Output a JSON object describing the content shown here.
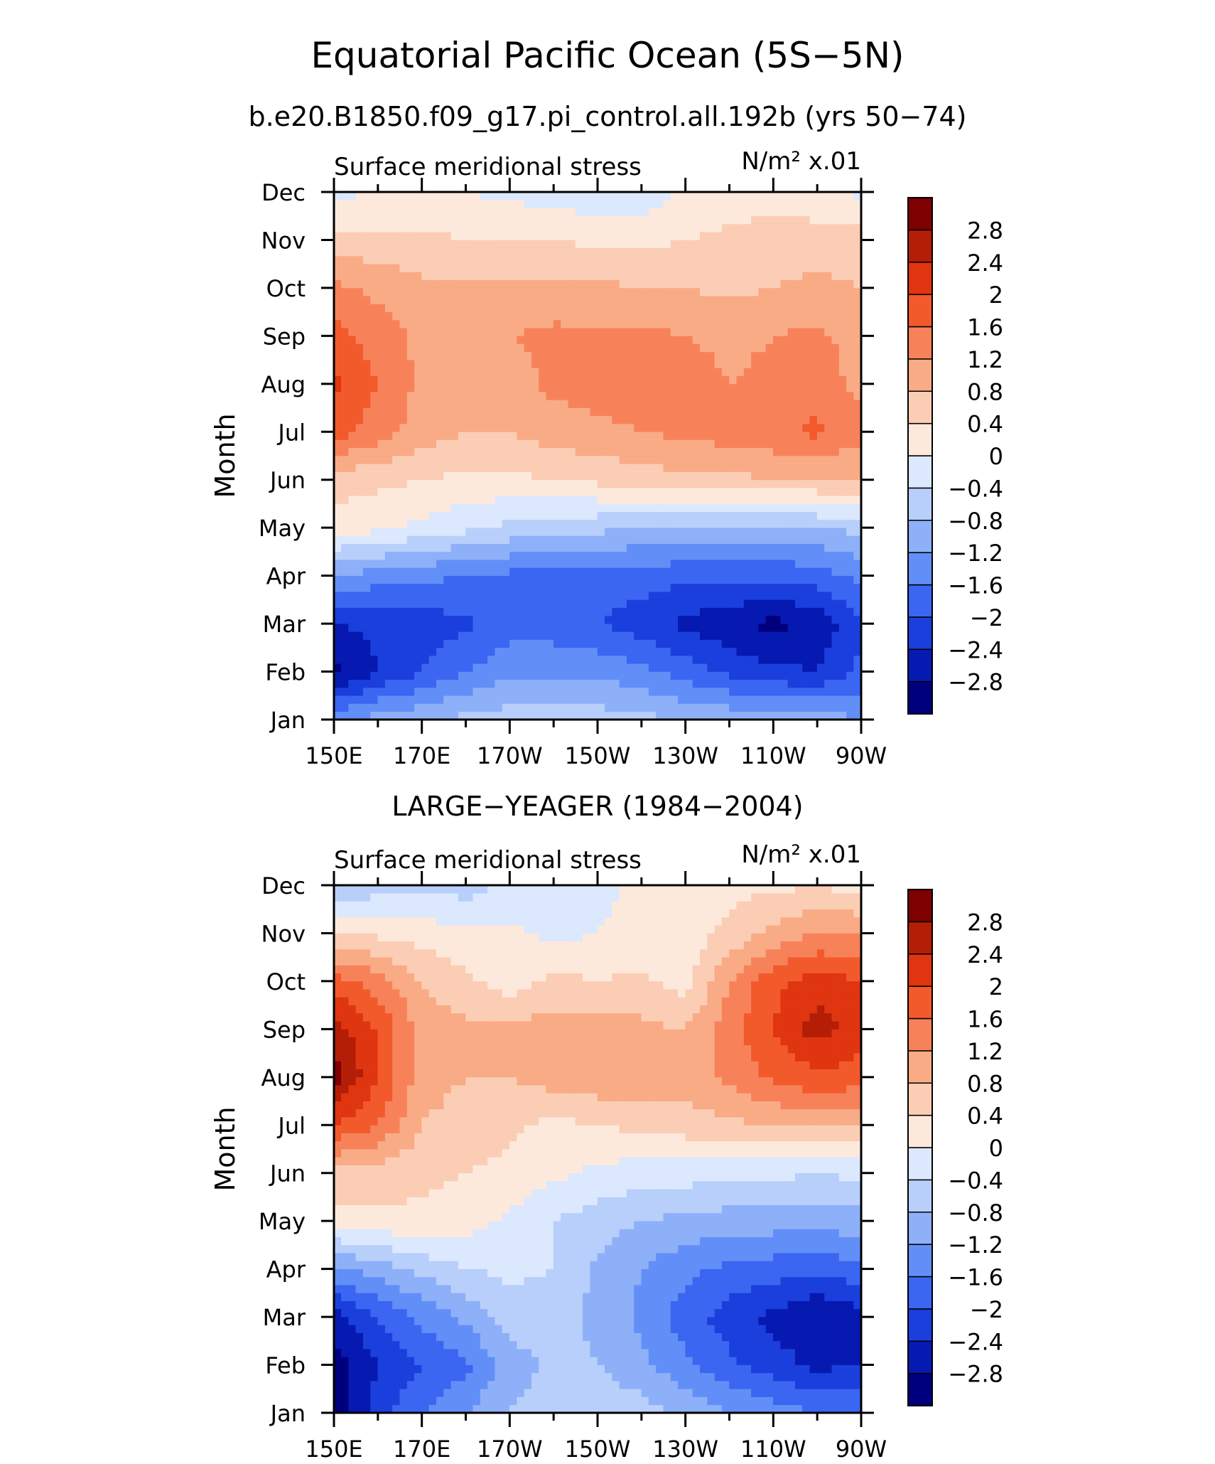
{
  "figure": {
    "title": "Equatorial Pacific Ocean (5S−5N)",
    "subtitle": "b.e20.B1850.f09_g17.pi_control.all.192b (yrs 50−74)"
  },
  "palette": [
    "#00007f",
    "#0619b0",
    "#1a3fdc",
    "#3a66f2",
    "#628ff7",
    "#8eb0f9",
    "#b8cffb",
    "#dbe8fd",
    "#fde9dc",
    "#fbcdb4",
    "#f9ab86",
    "#f7825a",
    "#f25a2c",
    "#df3510",
    "#b41e07",
    "#7f0000"
  ],
  "chart_data": [
    {
      "type": "heatmap",
      "panel_title": "",
      "left_label": "Surface meridional stress",
      "units_label": "N/m² x.01",
      "ylabel": "Month",
      "xlabel": "",
      "x": [
        "150E",
        "160E",
        "170E",
        "180",
        "170W",
        "160W",
        "150W",
        "140W",
        "130W",
        "120W",
        "110W",
        "100W",
        "90W"
      ],
      "x_ticklabels": [
        "150E",
        "170E",
        "170W",
        "150W",
        "130W",
        "110W",
        "90W"
      ],
      "y": [
        "Jan",
        "Feb",
        "Mar",
        "Apr",
        "May",
        "Jun",
        "Jul",
        "Aug",
        "Sep",
        "Oct",
        "Nov",
        "Dec"
      ],
      "levels": [
        -2.8,
        -2.4,
        -2.0,
        -1.6,
        -1.2,
        -0.8,
        -0.4,
        0,
        0.4,
        0.8,
        1.2,
        1.6,
        2.0,
        2.4,
        2.8
      ],
      "colorbar_labels": [
        "2.8",
        "2.4",
        "2",
        "1.6",
        "1.2",
        "0.8",
        "0.4",
        "0",
        "−0.4",
        "−0.8",
        "−1.2",
        "−1.6",
        "−2",
        "−2.4",
        "−2.8"
      ],
      "z": [
        [
          -1.4,
          -1.0,
          -0.9,
          -0.7,
          -0.6,
          -0.6,
          -0.6,
          -0.7,
          -0.8,
          -0.9,
          -1.0,
          -1.0,
          -1.2
        ],
        [
          -2.9,
          -2.4,
          -2.0,
          -1.6,
          -1.3,
          -1.3,
          -1.3,
          -1.5,
          -1.8,
          -2.1,
          -2.3,
          -2.4,
          -1.9
        ],
        [
          -2.4,
          -2.3,
          -2.2,
          -2.1,
          -1.8,
          -1.8,
          -2.0,
          -2.2,
          -2.5,
          -2.7,
          -2.9,
          -2.7,
          -2.1
        ],
        [
          -1.2,
          -1.4,
          -1.5,
          -1.6,
          -1.7,
          -1.7,
          -1.8,
          -1.8,
          -1.9,
          -1.9,
          -1.9,
          -1.8,
          -1.5
        ],
        [
          0.2,
          0.1,
          -0.1,
          -0.3,
          -0.5,
          -0.6,
          -0.7,
          -0.8,
          -0.8,
          -0.9,
          -0.9,
          -0.8,
          -0.7
        ],
        [
          0.6,
          0.5,
          0.4,
          0.3,
          0.3,
          0.4,
          0.5,
          0.6,
          0.7,
          0.7,
          0.8,
          0.8,
          0.8
        ],
        [
          1.8,
          1.4,
          1.0,
          0.8,
          0.8,
          1.0,
          1.1,
          1.2,
          1.3,
          1.4,
          1.5,
          1.7,
          1.3
        ],
        [
          2.1,
          1.6,
          1.1,
          1.0,
          1.0,
          1.3,
          1.4,
          1.4,
          1.4,
          1.2,
          1.3,
          1.4,
          1.1
        ],
        [
          1.8,
          1.4,
          1.1,
          1.1,
          1.2,
          1.3,
          1.3,
          1.3,
          1.2,
          1.1,
          1.2,
          1.3,
          1.0
        ],
        [
          1.3,
          1.1,
          0.9,
          0.9,
          0.9,
          0.9,
          0.9,
          0.8,
          0.8,
          0.7,
          0.8,
          0.9,
          0.8
        ],
        [
          0.6,
          0.5,
          0.5,
          0.4,
          0.4,
          0.4,
          0.3,
          0.3,
          0.4,
          0.5,
          0.6,
          0.6,
          0.6
        ],
        [
          -0.2,
          0.1,
          0.1,
          0.0,
          -0.1,
          -0.2,
          -0.3,
          -0.3,
          0.1,
          0.2,
          0.2,
          0.1,
          -0.1
        ]
      ]
    },
    {
      "type": "heatmap",
      "panel_title": "LARGE−YEAGER (1984−2004)",
      "left_label": "Surface meridional stress",
      "units_label": "N/m² x.01",
      "ylabel": "Month",
      "xlabel": "",
      "x": [
        "150E",
        "160E",
        "170E",
        "180",
        "170W",
        "160W",
        "150W",
        "140W",
        "130W",
        "120W",
        "110W",
        "100W",
        "90W"
      ],
      "x_ticklabels": [
        "150E",
        "170E",
        "170W",
        "150W",
        "130W",
        "110W",
        "90W"
      ],
      "y": [
        "Jan",
        "Feb",
        "Mar",
        "Apr",
        "May",
        "Jun",
        "Jul",
        "Aug",
        "Sep",
        "Oct",
        "Nov",
        "Dec"
      ],
      "levels": [
        -2.8,
        -2.4,
        -2.0,
        -1.6,
        -1.2,
        -0.8,
        -0.4,
        0,
        0.4,
        0.8,
        1.2,
        1.6,
        2.0,
        2.4,
        2.8
      ],
      "colorbar_labels": [
        "2.8",
        "2.4",
        "2",
        "1.6",
        "1.2",
        "0.8",
        "0.4",
        "0",
        "−0.4",
        "−0.8",
        "−1.2",
        "−1.6",
        "−2",
        "−2.4",
        "−2.8"
      ],
      "z": [
        [
          -3.0,
          -2.2,
          -1.6,
          -1.2,
          -0.8,
          -0.6,
          -0.5,
          -0.6,
          -0.9,
          -1.2,
          -1.4,
          -1.6,
          -1.7
        ],
        [
          -3.0,
          -2.4,
          -2.0,
          -1.7,
          -1.0,
          -0.7,
          -0.8,
          -1.1,
          -1.5,
          -1.9,
          -2.2,
          -2.5,
          -2.4
        ],
        [
          -2.6,
          -2.0,
          -1.5,
          -1.1,
          -0.6,
          -0.6,
          -0.9,
          -1.3,
          -1.8,
          -2.2,
          -2.5,
          -2.8,
          -2.6
        ],
        [
          -1.3,
          -1.0,
          -0.7,
          -0.4,
          -0.3,
          -0.4,
          -0.9,
          -1.2,
          -1.5,
          -1.7,
          -1.8,
          -1.9,
          -1.7
        ],
        [
          0.2,
          0.3,
          0.3,
          0.2,
          -0.1,
          -0.4,
          -0.6,
          -0.8,
          -0.9,
          -1.0,
          -1.0,
          -1.0,
          -1.0
        ],
        [
          0.7,
          0.6,
          0.5,
          0.4,
          0.3,
          0.1,
          -0.1,
          -0.2,
          -0.2,
          -0.3,
          -0.3,
          -0.4,
          -0.3
        ],
        [
          2.0,
          1.6,
          0.8,
          0.6,
          0.5,
          0.3,
          0.4,
          0.5,
          0.6,
          0.7,
          0.8,
          0.9,
          0.9
        ],
        [
          3.0,
          2.0,
          1.0,
          0.8,
          0.8,
          1.0,
          1.1,
          1.2,
          1.0,
          1.3,
          1.7,
          1.9,
          1.8
        ],
        [
          2.6,
          2.0,
          1.0,
          0.9,
          0.9,
          1.0,
          1.0,
          0.9,
          0.8,
          1.4,
          2.0,
          2.6,
          2.2
        ],
        [
          1.8,
          1.4,
          0.8,
          0.5,
          0.2,
          0.5,
          0.4,
          0.5,
          0.2,
          1.2,
          1.9,
          2.2,
          2.0
        ],
        [
          0.4,
          0.3,
          0.2,
          0.1,
          0.1,
          -0.1,
          0.0,
          0.1,
          0.2,
          0.5,
          0.9,
          1.2,
          1.2
        ],
        [
          -0.8,
          -0.6,
          -0.5,
          -0.6,
          -0.3,
          -0.2,
          -0.1,
          0.1,
          0.2,
          0.3,
          0.3,
          0.4,
          0.2
        ]
      ]
    }
  ]
}
